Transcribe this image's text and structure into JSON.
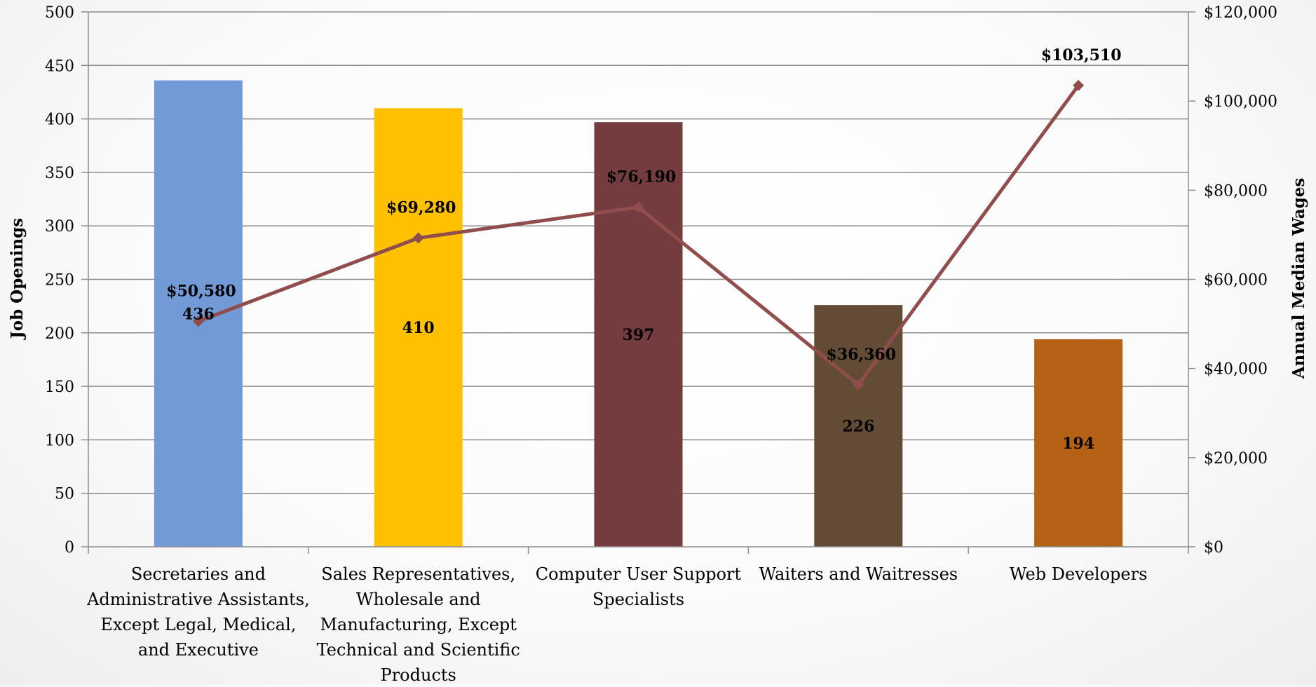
{
  "chart_data": {
    "type": "bar",
    "categories": [
      [
        "Secretaries and",
        "Administrative Assistants,",
        "Except Legal, Medical,",
        "and Executive"
      ],
      [
        "Sales Representatives,",
        "Wholesale and",
        "Manufacturing, Except",
        "Technical and Scientific",
        "Products"
      ],
      [
        "Computer User Support",
        "Specialists"
      ],
      [
        "Waiters and Waitresses"
      ],
      [
        "Web Developers"
      ]
    ],
    "series": [
      {
        "values": [
          436,
          410,
          397,
          226,
          194
        ],
        "value_labels": [
          "436",
          "410",
          "397",
          "226",
          "194"
        ],
        "colors": [
          "#729ad6",
          "#ffc000",
          "#743c3e",
          "#634c35",
          "#b56116"
        ],
        "axis": "left",
        "kind": "bar"
      },
      {
        "values": [
          50580,
          69280,
          76190,
          36360,
          103510
        ],
        "value_labels": [
          "$50,580",
          "$69,280",
          "$76,190",
          "$36,360",
          "$103,510"
        ],
        "color": "#914d4c",
        "axis": "right",
        "kind": "line",
        "marker": "diamond"
      }
    ],
    "ylabel": "Job Openings",
    "y2label": "Annual Median Wages",
    "ylim": [
      0,
      500
    ],
    "y2lim": [
      0,
      120000
    ],
    "y_ticks": [
      "0",
      "50",
      "100",
      "150",
      "200",
      "250",
      "300",
      "350",
      "400",
      "450",
      "500"
    ],
    "y2_ticks": [
      "$0",
      "$20,000",
      "$40,000",
      "$60,000",
      "$80,000",
      "$100,000",
      "$120,000"
    ],
    "grid": true,
    "legend": "none"
  }
}
